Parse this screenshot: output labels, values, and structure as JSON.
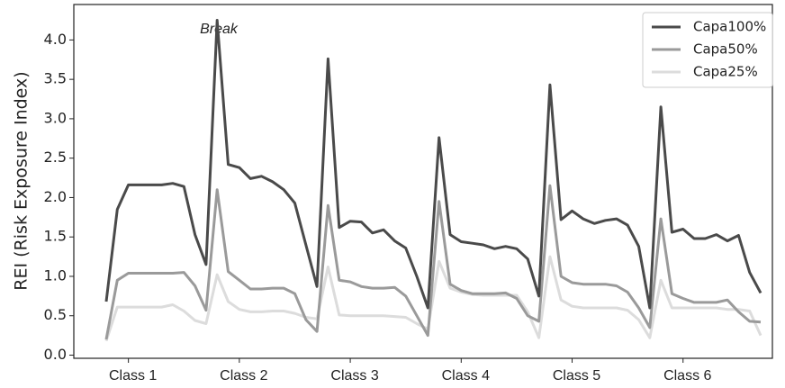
{
  "chart_data": {
    "type": "line",
    "y_label": "REI (Risk Exposure Index)",
    "annotation": "Break",
    "categories": [
      null,
      null,
      "Class 1",
      null,
      null,
      null,
      null,
      null,
      null,
      null,
      null,
      null,
      "Class 2",
      null,
      null,
      null,
      null,
      null,
      null,
      null,
      null,
      null,
      "Class 3",
      null,
      null,
      null,
      null,
      null,
      null,
      null,
      null,
      null,
      "Class 4",
      null,
      null,
      null,
      null,
      null,
      null,
      null,
      null,
      null,
      "Class 5",
      null,
      null,
      null,
      null,
      null,
      null,
      null,
      null,
      null,
      "Class 6",
      null,
      null,
      null,
      null,
      null,
      null,
      null
    ],
    "series": [
      {
        "name": "Capa100%",
        "color": "#4a4a4a",
        "values": [
          0.68,
          1.85,
          2.16,
          2.16,
          2.16,
          2.16,
          2.18,
          2.14,
          1.53,
          1.15,
          4.25,
          2.42,
          2.38,
          2.24,
          2.27,
          2.2,
          2.1,
          1.93,
          1.4,
          0.87,
          3.76,
          1.62,
          1.7,
          1.69,
          1.55,
          1.59,
          1.45,
          1.36,
          1.0,
          0.6,
          2.76,
          1.53,
          1.44,
          1.42,
          1.4,
          1.35,
          1.38,
          1.35,
          1.22,
          0.75,
          3.43,
          1.72,
          1.83,
          1.73,
          1.67,
          1.71,
          1.73,
          1.65,
          1.38,
          0.6,
          3.15,
          1.56,
          1.6,
          1.48,
          1.48,
          1.53,
          1.45,
          1.52,
          1.05,
          0.79
        ]
      },
      {
        "name": "Capa50%",
        "color": "#9a9a9a",
        "values": [
          0.2,
          0.95,
          1.04,
          1.04,
          1.04,
          1.04,
          1.04,
          1.05,
          0.88,
          0.57,
          2.1,
          1.06,
          0.95,
          0.84,
          0.84,
          0.85,
          0.85,
          0.78,
          0.45,
          0.3,
          1.9,
          0.95,
          0.93,
          0.87,
          0.85,
          0.85,
          0.86,
          0.75,
          0.5,
          0.25,
          1.95,
          0.9,
          0.82,
          0.78,
          0.78,
          0.78,
          0.79,
          0.72,
          0.5,
          0.43,
          2.15,
          1.0,
          0.92,
          0.9,
          0.9,
          0.9,
          0.88,
          0.8,
          0.6,
          0.35,
          1.73,
          0.78,
          0.72,
          0.67,
          0.67,
          0.67,
          0.7,
          0.55,
          0.43,
          0.42
        ]
      },
      {
        "name": "Capa25%",
        "color": "#dcdcdc",
        "values": [
          0.18,
          0.61,
          0.61,
          0.61,
          0.61,
          0.61,
          0.64,
          0.56,
          0.44,
          0.4,
          1.02,
          0.68,
          0.58,
          0.55,
          0.55,
          0.56,
          0.56,
          0.53,
          0.48,
          0.46,
          1.12,
          0.51,
          0.5,
          0.5,
          0.5,
          0.5,
          0.49,
          0.48,
          0.4,
          0.33,
          1.19,
          0.85,
          0.8,
          0.77,
          0.76,
          0.76,
          0.76,
          0.76,
          0.55,
          0.22,
          1.25,
          0.7,
          0.62,
          0.6,
          0.6,
          0.6,
          0.6,
          0.57,
          0.45,
          0.22,
          0.95,
          0.6,
          0.6,
          0.6,
          0.6,
          0.6,
          0.58,
          0.58,
          0.56,
          0.25
        ]
      }
    ],
    "ylim": [
      -0.04,
      4.45
    ],
    "yticks": [
      {
        "value": 0,
        "label": "0.0"
      },
      0.5,
      {
        "value": 1,
        "label": "1.0"
      },
      1.5,
      {
        "value": 2,
        "label": "2.0"
      },
      2.5,
      {
        "value": 3,
        "label": "3.0"
      },
      3.5,
      {
        "value": 4,
        "label": "4.0"
      }
    ],
    "legend": "upper right"
  }
}
